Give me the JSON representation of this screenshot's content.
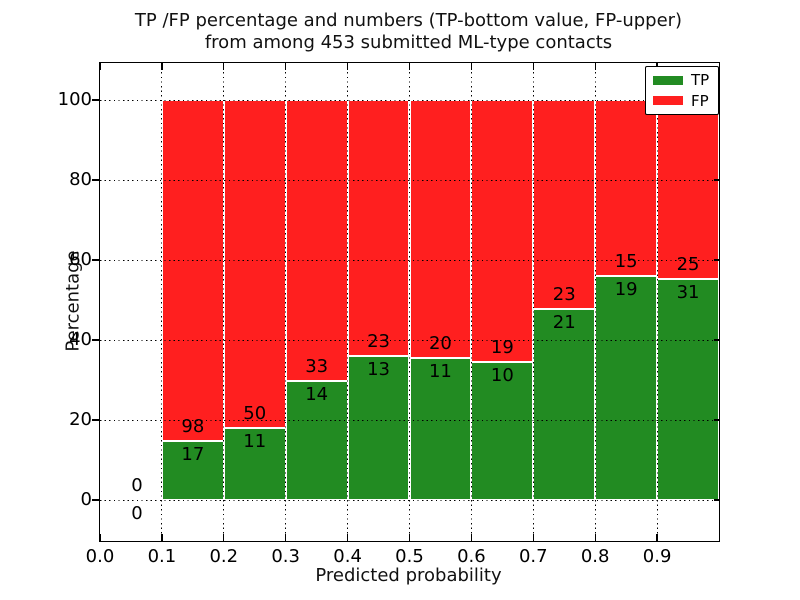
{
  "figure": {
    "title_line1": "TP /FP percentage and numbers (TP-bottom value, FP-upper)",
    "title_line2": "from among 453 submitted ML-type contacts",
    "xlabel": "Predicted probability",
    "ylabel": "Percentage"
  },
  "legend": {
    "position": "upper right",
    "items": [
      {
        "label": "TP",
        "color": "#228b22"
      },
      {
        "label": "FP",
        "color": "#ff1f1f"
      }
    ]
  },
  "colors": {
    "tp": "#228b22",
    "fp": "#ff1f1f",
    "grid": "#000000",
    "axes": "#000000",
    "bar_edge": "#ffffff",
    "background": "#ffffff"
  },
  "chart_data": {
    "type": "bar",
    "stacked": true,
    "orientation": "vertical",
    "title": "TP /FP percentage and numbers (TP-bottom value, FP-upper) from among 453 submitted ML-type contacts",
    "xlabel": "Predicted probability",
    "ylabel": "Percentage",
    "xlim": [
      0.0,
      1.0
    ],
    "ylim": [
      -10.25,
      109.25
    ],
    "x_ticks": [
      "0.0",
      "0.1",
      "0.2",
      "0.3",
      "0.4",
      "0.5",
      "0.6",
      "0.7",
      "0.8",
      "0.9"
    ],
    "y_ticks": [
      0,
      20,
      40,
      60,
      80,
      100
    ],
    "grid": "dotted, both axes, drawn over bars",
    "legend_position": "upper right",
    "total_contacts": 453,
    "series": [
      {
        "name": "TP",
        "color": "#228b22",
        "position": "bottom"
      },
      {
        "name": "FP",
        "color": "#ff1f1f",
        "position": "top"
      }
    ],
    "bins": [
      {
        "x_start": 0.0,
        "x_end": 0.1,
        "tp_count": 0,
        "fp_count": 0,
        "tp_pct": 0,
        "fp_pct": 0
      },
      {
        "x_start": 0.1,
        "x_end": 0.2,
        "tp_count": 17,
        "fp_count": 98,
        "tp_pct": 14.78,
        "fp_pct": 85.22
      },
      {
        "x_start": 0.2,
        "x_end": 0.3,
        "tp_count": 11,
        "fp_count": 50,
        "tp_pct": 18.03,
        "fp_pct": 81.97
      },
      {
        "x_start": 0.3,
        "x_end": 0.4,
        "tp_count": 14,
        "fp_count": 33,
        "tp_pct": 29.79,
        "fp_pct": 70.21
      },
      {
        "x_start": 0.4,
        "x_end": 0.5,
        "tp_count": 13,
        "fp_count": 23,
        "tp_pct": 36.11,
        "fp_pct": 63.89
      },
      {
        "x_start": 0.5,
        "x_end": 0.6,
        "tp_count": 11,
        "fp_count": 20,
        "tp_pct": 35.48,
        "fp_pct": 64.52
      },
      {
        "x_start": 0.6,
        "x_end": 0.7,
        "tp_count": 10,
        "fp_count": 19,
        "tp_pct": 34.48,
        "fp_pct": 65.52
      },
      {
        "x_start": 0.7,
        "x_end": 0.8,
        "tp_count": 21,
        "fp_count": 23,
        "tp_pct": 47.73,
        "fp_pct": 52.27
      },
      {
        "x_start": 0.8,
        "x_end": 0.9,
        "tp_count": 19,
        "fp_count": 15,
        "tp_pct": 55.88,
        "fp_pct": 44.12
      },
      {
        "x_start": 0.9,
        "x_end": 1.0,
        "tp_count": 31,
        "fp_count": 25,
        "tp_pct": 55.36,
        "fp_pct": 44.64
      }
    ]
  }
}
